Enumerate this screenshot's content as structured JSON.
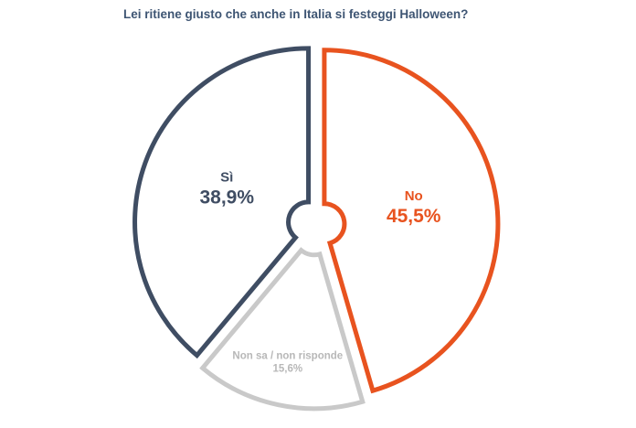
{
  "chart_data": {
    "type": "pie",
    "title": "Lei ritiene giusto che anche in Italia si festeggi Halloween?",
    "slices": [
      {
        "name": "No",
        "value_label": "45,5%",
        "value": 45.5,
        "color": "#e8531f",
        "fill": "#ffffff"
      },
      {
        "name": "Non sa / non risponde",
        "value_label": "15,6%",
        "value": 15.6,
        "color": "#c9c9c9",
        "fill": "#ffffff"
      },
      {
        "name": "Sì",
        "value_label": "38,9%",
        "value": 38.9,
        "color": "#3f4d63",
        "fill": "#ffffff"
      }
    ],
    "legend": "none"
  }
}
